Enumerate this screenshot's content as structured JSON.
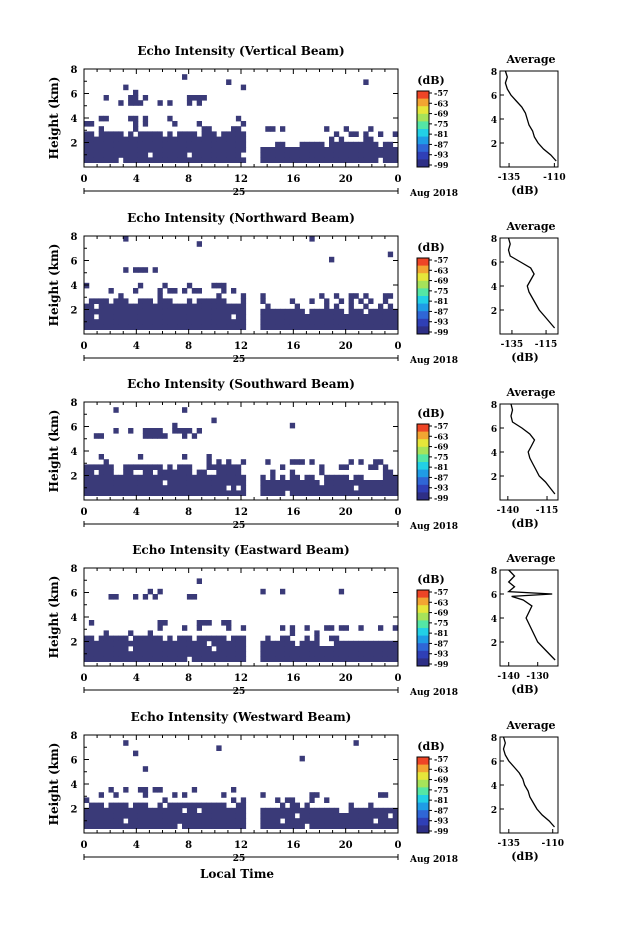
{
  "colors": {
    "echo": "#3a3a78",
    "colorbar": [
      "#2e2f86",
      "#2f3fb6",
      "#2f66d6",
      "#1f9ce6",
      "#22d0e6",
      "#54e6a5",
      "#a6e35a",
      "#e6e63a",
      "#f2a532",
      "#ee4526"
    ]
  },
  "common": {
    "ylabel": "Height (km)",
    "xticks": [
      "0",
      "4",
      "8",
      "12",
      "16",
      "20",
      "0"
    ],
    "date_day": "25",
    "date_month": "Aug 2018",
    "cb_unit": "(dB)",
    "cb_ticks": [
      "-57",
      "-63",
      "-69",
      "-75",
      "-81",
      "-87",
      "-93",
      "-99"
    ],
    "avg_title": "Average",
    "avg_xlabel": "(dB)",
    "xlabel_bottom": "Local Time"
  },
  "chart_data": [
    {
      "type": "heatmap",
      "title": "Echo Intensity (Vertical Beam)",
      "ylabel": "Height (km)",
      "x_range_hours": [
        0,
        24
      ],
      "ylim_km": [
        0,
        8
      ],
      "yticks": [
        "2",
        "4",
        "6",
        "8"
      ],
      "colorbar": {
        "unit": "(dB)",
        "ticks": [
          -57,
          -63,
          -69,
          -75,
          -81,
          -87,
          -93,
          -99
        ]
      },
      "echo_layers": [
        {
          "x0": 0,
          "x1": 12.5,
          "top_km": 2.8
        },
        {
          "x0": 13.5,
          "x1": 24,
          "top_km": 2.0
        },
        {
          "x0": 1.5,
          "x1": 9.5,
          "layer_km": [
            5.0,
            5.6
          ]
        }
      ],
      "average_profile": {
        "title": "Average",
        "xlabel": "(dB)",
        "xticks": [
          "-135",
          "-110"
        ],
        "xlim": [
          -140,
          -108
        ],
        "yticks": [
          "2",
          "4",
          "6",
          "8"
        ],
        "points": [
          [
            -109,
            0.5
          ],
          [
            -112,
            1.0
          ],
          [
            -116,
            1.5
          ],
          [
            -119,
            2.0
          ],
          [
            -121,
            2.5
          ],
          [
            -122,
            3.0
          ],
          [
            -124,
            3.5
          ],
          [
            -125,
            4.0
          ],
          [
            -126,
            4.5
          ],
          [
            -128,
            5.0
          ],
          [
            -131,
            5.5
          ],
          [
            -134,
            6.0
          ],
          [
            -136,
            6.5
          ],
          [
            -137,
            7.0
          ],
          [
            -136,
            7.5
          ],
          [
            -137,
            8.0
          ]
        ]
      }
    },
    {
      "type": "heatmap",
      "title": "Echo Intensity (Northward Beam)",
      "ylabel": "Height (km)",
      "x_range_hours": [
        0,
        24
      ],
      "ylim_km": [
        0,
        8
      ],
      "yticks": [
        "2",
        "4",
        "6",
        "8"
      ],
      "colorbar": {
        "unit": "(dB)",
        "ticks": [
          -57,
          -63,
          -69,
          -75,
          -81,
          -87,
          -93,
          -99
        ]
      },
      "echo_layers": [
        {
          "x0": 0,
          "x1": 12.5,
          "top_km": 2.8
        },
        {
          "x0": 13.5,
          "x1": 24,
          "top_km": 2.0
        },
        {
          "x0": 2.0,
          "x1": 5.5,
          "layer_km": [
            4.8,
            5.2
          ]
        }
      ],
      "average_profile": {
        "title": "Average",
        "xlabel": "(dB)",
        "xticks": [
          "-135",
          "-115"
        ],
        "xlim": [
          -142,
          -108
        ],
        "yticks": [
          "2",
          "4",
          "6",
          "8"
        ],
        "points": [
          [
            -110,
            0.5
          ],
          [
            -113,
            1.0
          ],
          [
            -116,
            1.5
          ],
          [
            -119,
            2.0
          ],
          [
            -121,
            2.5
          ],
          [
            -123,
            3.0
          ],
          [
            -125,
            3.5
          ],
          [
            -126,
            4.0
          ],
          [
            -124,
            4.5
          ],
          [
            -122,
            5.0
          ],
          [
            -124,
            5.5
          ],
          [
            -130,
            6.0
          ],
          [
            -136,
            6.5
          ],
          [
            -137,
            7.0
          ],
          [
            -136,
            7.5
          ],
          [
            -137,
            8.0
          ]
        ]
      }
    },
    {
      "type": "heatmap",
      "title": "Echo Intensity (Southward Beam)",
      "ylabel": "Height (km)",
      "x_range_hours": [
        0,
        24
      ],
      "ylim_km": [
        0,
        8
      ],
      "yticks": [
        "2",
        "4",
        "6",
        "8"
      ],
      "colorbar": {
        "unit": "(dB)",
        "ticks": [
          -57,
          -63,
          -69,
          -75,
          -81,
          -87,
          -93,
          -99
        ]
      },
      "echo_layers": [
        {
          "x0": 0,
          "x1": 12.5,
          "top_km": 2.5
        },
        {
          "x0": 13.5,
          "x1": 24,
          "top_km": 2.0
        },
        {
          "x0": 0.5,
          "x1": 9.5,
          "layer_km": [
            5.0,
            5.6
          ]
        }
      ],
      "average_profile": {
        "title": "Average",
        "xlabel": "(dB)",
        "xticks": [
          "-140",
          "-115"
        ],
        "xlim": [
          -145,
          -108
        ],
        "yticks": [
          "2",
          "4",
          "6",
          "8"
        ],
        "points": [
          [
            -110,
            0.5
          ],
          [
            -113,
            1.0
          ],
          [
            -116,
            1.5
          ],
          [
            -120,
            2.0
          ],
          [
            -122,
            2.5
          ],
          [
            -124,
            3.0
          ],
          [
            -126,
            3.5
          ],
          [
            -127,
            4.0
          ],
          [
            -125,
            4.5
          ],
          [
            -123,
            5.0
          ],
          [
            -126,
            5.5
          ],
          [
            -131,
            6.0
          ],
          [
            -137,
            6.5
          ],
          [
            -138,
            7.0
          ],
          [
            -137,
            7.5
          ],
          [
            -138,
            8.0
          ]
        ]
      }
    },
    {
      "type": "heatmap",
      "title": "Echo Intensity (Eastward Beam)",
      "ylabel": "Height (km)",
      "x_range_hours": [
        0,
        24
      ],
      "ylim_km": [
        0,
        8
      ],
      "yticks": [
        "2",
        "4",
        "6",
        "8"
      ],
      "colorbar": {
        "unit": "(dB)",
        "ticks": [
          -57,
          -63,
          -69,
          -75,
          -81,
          -87,
          -93,
          -99
        ]
      },
      "echo_layers": [
        {
          "x0": 0,
          "x1": 12.5,
          "top_km": 2.4
        },
        {
          "x0": 13.5,
          "x1": 24,
          "top_km": 2.0
        },
        {
          "x0": 2.0,
          "x1": 9.5,
          "layer_km": [
            5.2,
            5.8
          ]
        }
      ],
      "average_profile": {
        "title": "Average",
        "xlabel": "(dB)",
        "xticks": [
          "-140",
          "-130"
        ],
        "xlim": [
          -143,
          -123
        ],
        "yticks": [
          "2",
          "4",
          "6",
          "8"
        ],
        "points": [
          [
            -124,
            0.5
          ],
          [
            -126,
            1.0
          ],
          [
            -128,
            1.5
          ],
          [
            -130,
            2.0
          ],
          [
            -131,
            2.5
          ],
          [
            -132,
            3.0
          ],
          [
            -133,
            3.5
          ],
          [
            -134,
            4.0
          ],
          [
            -133,
            4.5
          ],
          [
            -132,
            5.0
          ],
          [
            -135,
            5.5
          ],
          [
            -139,
            5.8
          ],
          [
            -125,
            6.0
          ],
          [
            -140,
            6.2
          ],
          [
            -138,
            6.6
          ],
          [
            -140,
            7.0
          ],
          [
            -138,
            7.5
          ],
          [
            -140,
            8.0
          ]
        ]
      }
    },
    {
      "type": "heatmap",
      "title": "Echo Intensity (Westward Beam)",
      "ylabel": "Height (km)",
      "x_range_hours": [
        0,
        24
      ],
      "ylim_km": [
        0,
        8
      ],
      "yticks": [
        "2",
        "4",
        "6",
        "8"
      ],
      "colorbar": {
        "unit": "(dB)",
        "ticks": [
          -57,
          -63,
          -69,
          -75,
          -81,
          -87,
          -93,
          -99
        ]
      },
      "echo_layers": [
        {
          "x0": 0,
          "x1": 12.5,
          "top_km": 2.3
        },
        {
          "x0": 13.5,
          "x1": 24,
          "top_km": 1.9
        },
        {
          "x0": 2.0,
          "x1": 6.0,
          "layer_km": [
            4.9,
            5.3
          ]
        }
      ],
      "average_profile": {
        "title": "Average",
        "xlabel": "(dB)",
        "xticks": [
          "-135",
          "-110"
        ],
        "xlim": [
          -140,
          -107
        ],
        "yticks": [
          "2",
          "4",
          "6",
          "8"
        ],
        "points": [
          [
            -109,
            0.5
          ],
          [
            -112,
            1.0
          ],
          [
            -116,
            1.5
          ],
          [
            -119,
            2.0
          ],
          [
            -121,
            2.5
          ],
          [
            -123,
            3.0
          ],
          [
            -124,
            3.5
          ],
          [
            -126,
            4.0
          ],
          [
            -127,
            4.5
          ],
          [
            -129,
            5.0
          ],
          [
            -132,
            5.5
          ],
          [
            -135,
            6.0
          ],
          [
            -137,
            6.5
          ],
          [
            -138,
            7.0
          ],
          [
            -137,
            7.5
          ],
          [
            -138,
            8.0
          ]
        ]
      }
    }
  ]
}
